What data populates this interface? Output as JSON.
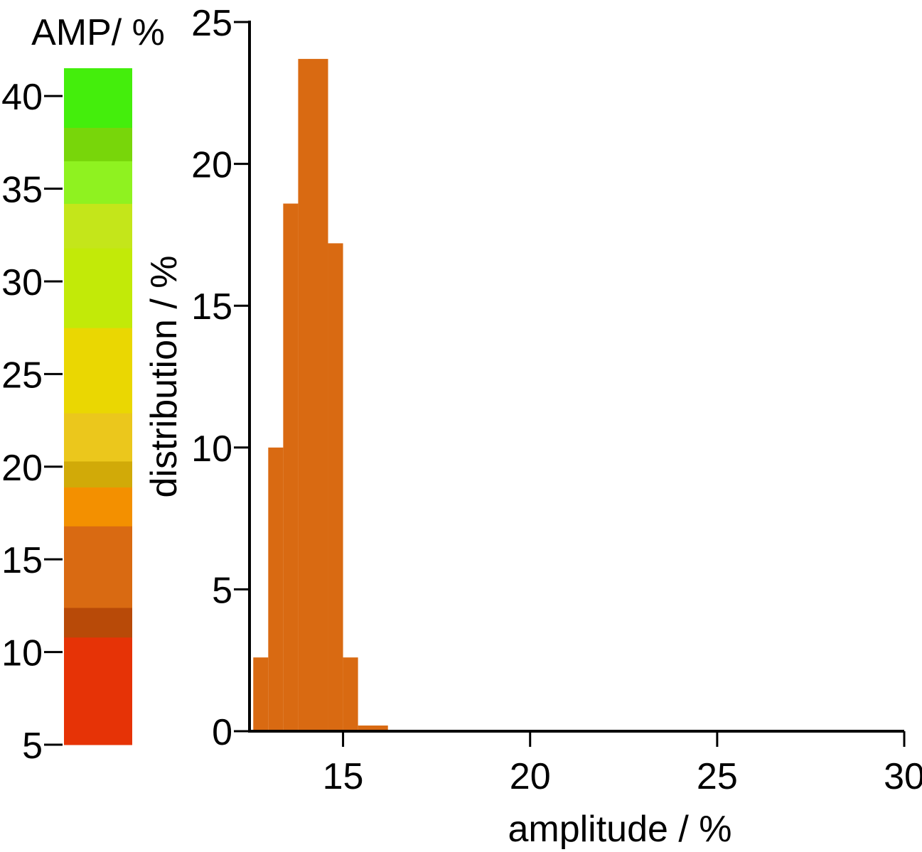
{
  "colorbar": {
    "title": "AMP/ %",
    "ticks": [
      5,
      10,
      15,
      20,
      25,
      30,
      35,
      40
    ],
    "range": [
      5,
      41.5
    ],
    "bands": [
      {
        "from": 5,
        "to": 10.8,
        "color": "#e63306"
      },
      {
        "from": 10.8,
        "to": 12.4,
        "color": "#b84a08"
      },
      {
        "from": 12.4,
        "to": 16.8,
        "color": "#d96a12"
      },
      {
        "from": 16.8,
        "to": 18.9,
        "color": "#f39000"
      },
      {
        "from": 18.9,
        "to": 20.3,
        "color": "#d1aa08"
      },
      {
        "from": 20.3,
        "to": 22.9,
        "color": "#ebc71c"
      },
      {
        "from": 22.9,
        "to": 27.5,
        "color": "#ead702"
      },
      {
        "from": 27.5,
        "to": 31.8,
        "color": "#c2ea08"
      },
      {
        "from": 31.8,
        "to": 34.2,
        "color": "#c4e61a"
      },
      {
        "from": 34.2,
        "to": 36.5,
        "color": "#8ff220"
      },
      {
        "from": 36.5,
        "to": 38.3,
        "color": "#78d60a"
      },
      {
        "from": 38.3,
        "to": 41.5,
        "color": "#44ee0c"
      }
    ]
  },
  "chart_data": {
    "type": "bar",
    "xlabel": "amplitude / %",
    "ylabel": "distribution / %",
    "xlim": [
      12.5,
      30
    ],
    "ylim": [
      0,
      25
    ],
    "xticks": [
      15,
      20,
      25,
      30
    ],
    "yticks": [
      0,
      5,
      10,
      15,
      20,
      25
    ],
    "bar_color": "#d96a12",
    "bin_edges": [
      12.6,
      13.0,
      13.4,
      13.8,
      14.6,
      15.0,
      15.4,
      16.2
    ],
    "values": [
      2.6,
      10.0,
      18.6,
      23.7,
      17.2,
      2.6,
      0.2
    ]
  }
}
